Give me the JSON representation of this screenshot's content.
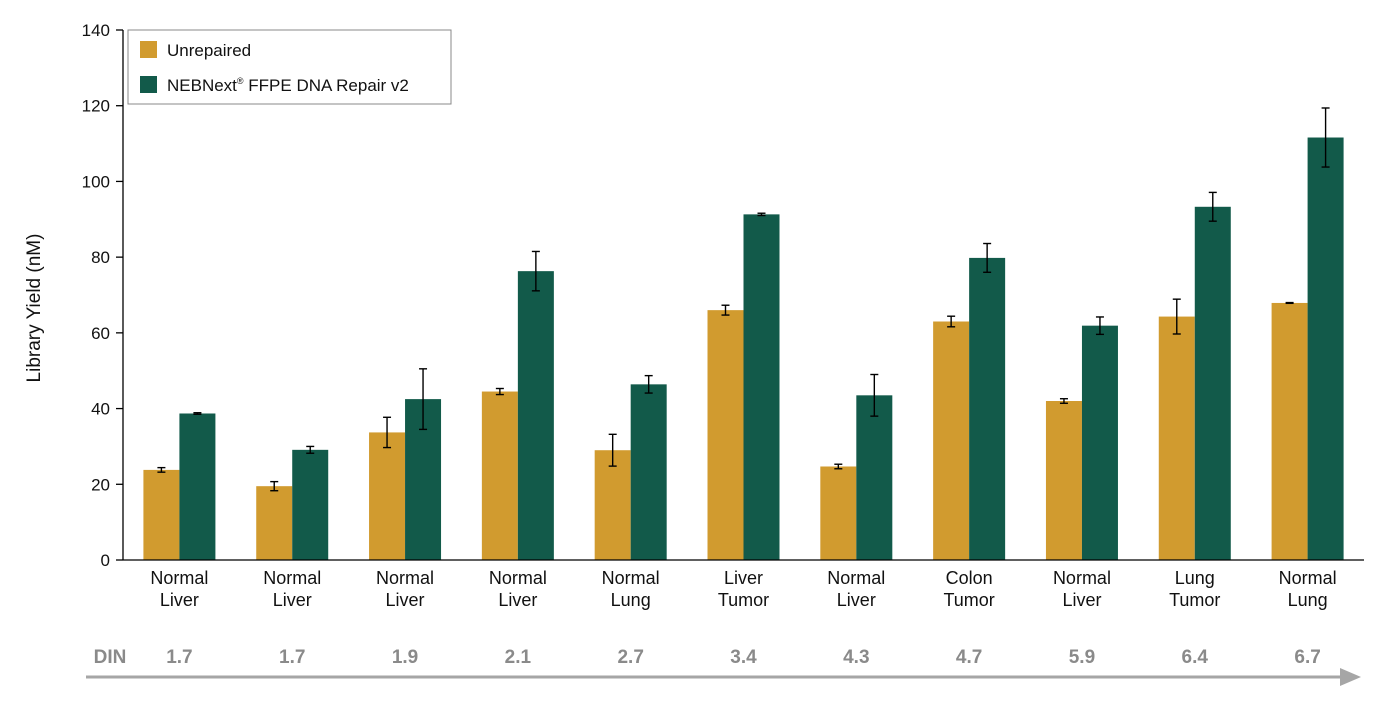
{
  "chart_data": {
    "type": "bar",
    "ylabel": "Library Yield (nM)",
    "ylim": [
      0,
      140
    ],
    "yticks": [
      0,
      20,
      40,
      60,
      80,
      100,
      120,
      140
    ],
    "categories": [
      [
        "Normal",
        "Liver"
      ],
      [
        "Normal",
        "Liver"
      ],
      [
        "Normal",
        "Liver"
      ],
      [
        "Normal",
        "Liver"
      ],
      [
        "Normal",
        "Lung"
      ],
      [
        "Liver",
        "Tumor"
      ],
      [
        "Normal",
        "Liver"
      ],
      [
        "Colon",
        "Tumor"
      ],
      [
        "Normal",
        "Liver"
      ],
      [
        "Lung",
        "Tumor"
      ],
      [
        "Normal",
        "Lung"
      ]
    ],
    "din_label": "DIN",
    "din_values": [
      "1.7",
      "1.7",
      "1.9",
      "2.1",
      "2.7",
      "3.4",
      "4.3",
      "4.7",
      "5.9",
      "6.4",
      "6.7"
    ],
    "series": [
      {
        "name": "Unrepaired",
        "color": "#d19b2f",
        "values": [
          23.8,
          19.5,
          33.7,
          44.5,
          29.0,
          66.0,
          24.7,
          63.0,
          42.0,
          64.3,
          67.9
        ],
        "errors": [
          0.6,
          1.2,
          4.0,
          0.8,
          4.2,
          1.3,
          0.6,
          1.4,
          0.6,
          4.6,
          0.1
        ]
      },
      {
        "name": "NEBNext",
        "name_sup": "®",
        "name_rest": " FFPE DNA Repair v2",
        "color": "#125a4a",
        "values": [
          38.7,
          29.1,
          42.5,
          76.3,
          46.4,
          91.3,
          43.5,
          79.8,
          61.9,
          93.3,
          111.6
        ],
        "errors": [
          0.2,
          0.9,
          8.0,
          5.2,
          2.3,
          0.3,
          5.5,
          3.8,
          2.3,
          3.8,
          7.8
        ]
      }
    ],
    "legend": "top-left",
    "grid": false
  }
}
